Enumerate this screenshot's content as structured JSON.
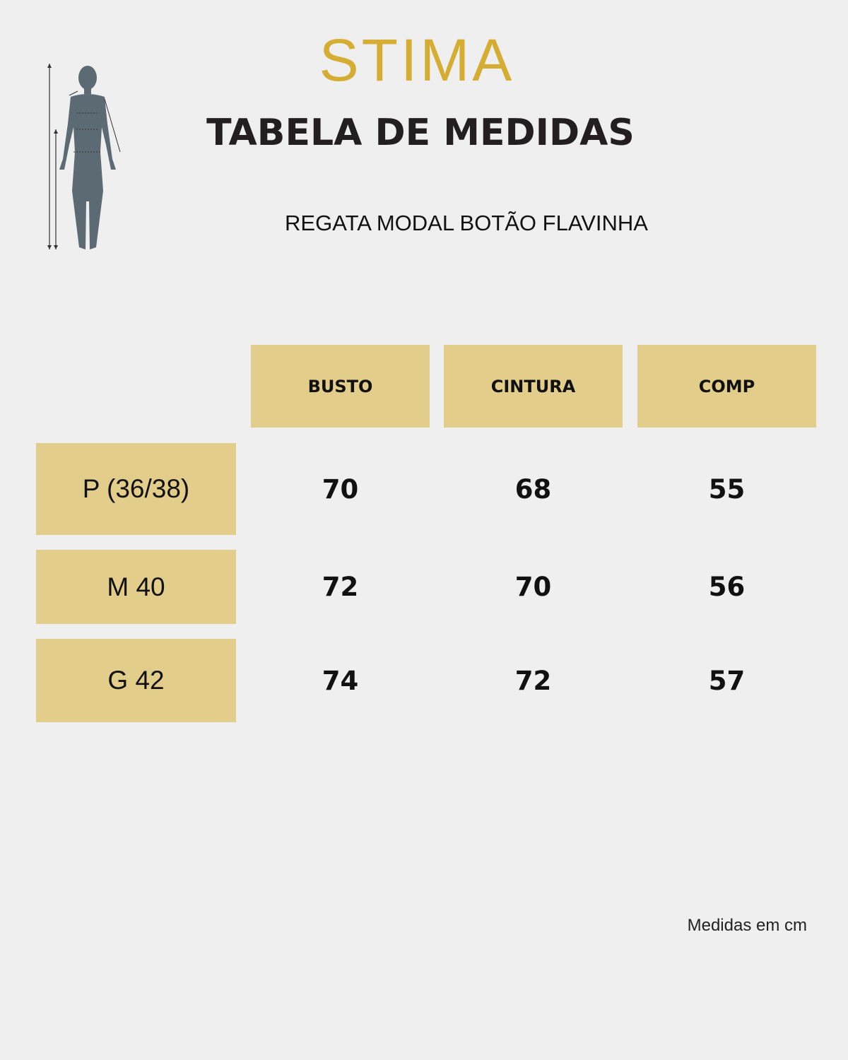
{
  "brand": "STIMA",
  "title": "TABELA DE MEDIDAS",
  "subtitle": "REGATA MODAL BOTÃO FLAVINHA",
  "table": {
    "headers": [
      "BUSTO",
      "CINTURA",
      "COMP"
    ],
    "rows": [
      {
        "size": "P (36/38)",
        "values": [
          70,
          68,
          55
        ]
      },
      {
        "size": "M 40",
        "values": [
          72,
          70,
          56
        ]
      },
      {
        "size": "G 42",
        "values": [
          74,
          72,
          57
        ]
      }
    ]
  },
  "footnote": "Medidas em cm"
}
